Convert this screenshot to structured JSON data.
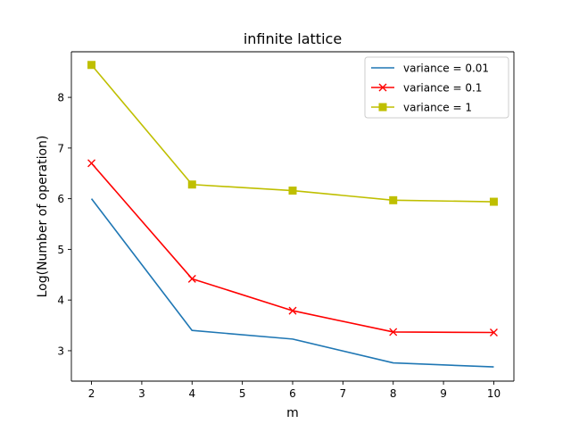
{
  "chart_data": {
    "type": "line",
    "title": "infinite lattice",
    "xlabel": "m",
    "ylabel": "Log(Number of operation)",
    "xlim": [
      1.6,
      10.4
    ],
    "ylim": [
      2.4,
      8.9
    ],
    "xticks": [
      2,
      3,
      4,
      5,
      6,
      7,
      8,
      9,
      10
    ],
    "yticks": [
      3,
      4,
      5,
      6,
      7,
      8
    ],
    "grid": false,
    "legend_position": "top-right",
    "series": [
      {
        "name": "variance = 0.01",
        "color": "#1f77b4",
        "marker": "none",
        "x": [
          2,
          4,
          6,
          8,
          10
        ],
        "y": [
          6.0,
          3.4,
          3.23,
          2.76,
          2.68
        ]
      },
      {
        "name": "variance = 0.1",
        "color": "#ff0000",
        "marker": "x",
        "x": [
          2,
          4,
          6,
          8,
          10
        ],
        "y": [
          6.7,
          4.42,
          3.79,
          3.37,
          3.36
        ]
      },
      {
        "name": "variance = 1",
        "color": "#bfbf00",
        "marker": "square",
        "x": [
          2,
          4,
          6,
          8,
          10
        ],
        "y": [
          8.64,
          6.28,
          6.16,
          5.97,
          5.94
        ]
      }
    ]
  }
}
